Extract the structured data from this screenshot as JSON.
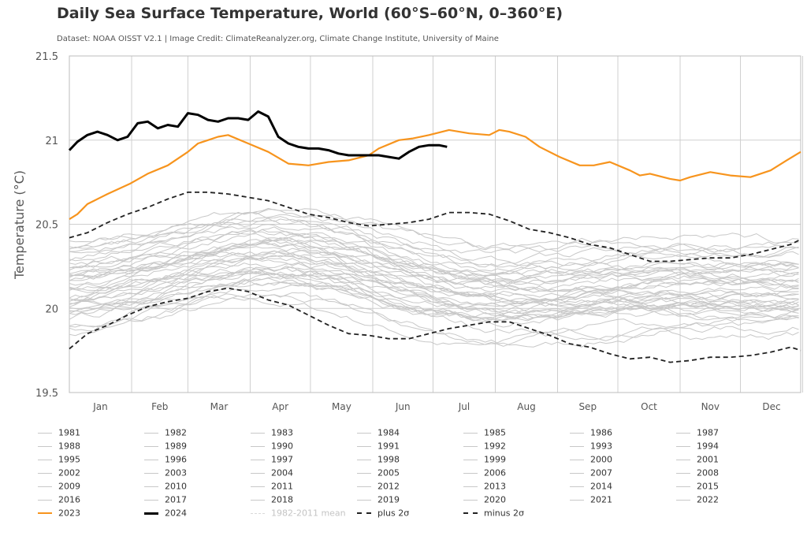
{
  "title": "Daily Sea Surface Temperature, World (60°S–60°N, 0–360°E)",
  "subtitle": "Dataset: NOAA OISST V2.1 | Image Credit: ClimateReanalyzer.org, Climate Change Institute, University of Maine",
  "colors": {
    "grey": "#c8c8c8",
    "y2023": "#f7941d",
    "y2024": "#000000",
    "band": "#222222",
    "mean": "#d9d9d9"
  },
  "chart_data": {
    "type": "line",
    "title": "Daily Sea Surface Temperature, World (60°S–60°N, 0–360°E)",
    "ylabel": "Temperature (°C)",
    "xlabel": "",
    "ylim": [
      19.5,
      21.5
    ],
    "yticks": [
      "19.5",
      "20",
      "20.5",
      "21",
      "21.5"
    ],
    "months": [
      "Jan",
      "Feb",
      "Mar",
      "Apr",
      "May",
      "Jun",
      "Jul",
      "Aug",
      "Sep",
      "Oct",
      "Nov",
      "Dec"
    ],
    "grid": true,
    "legend_position": "bottom",
    "series": [
      {
        "name": "2023",
        "color": "#f7941d",
        "x": [
          1,
          5,
          10,
          20,
          31,
          40,
          50,
          60,
          65,
          70,
          75,
          80,
          90,
          100,
          110,
          120,
          130,
          140,
          150,
          155,
          165,
          172,
          180,
          190,
          200,
          210,
          215,
          220,
          228,
          235,
          245,
          255,
          262,
          270,
          280,
          285,
          290,
          300,
          305,
          310,
          320,
          325,
          330,
          340,
          350,
          358,
          365
        ],
        "y": [
          20.53,
          20.56,
          20.62,
          20.68,
          20.74,
          20.8,
          20.85,
          20.93,
          20.98,
          21.0,
          21.02,
          21.03,
          20.98,
          20.93,
          20.86,
          20.85,
          20.87,
          20.88,
          20.91,
          20.95,
          21.0,
          21.01,
          21.03,
          21.06,
          21.04,
          21.03,
          21.06,
          21.05,
          21.02,
          20.96,
          20.9,
          20.85,
          20.85,
          20.87,
          20.82,
          20.79,
          20.8,
          20.77,
          20.76,
          20.78,
          20.81,
          20.8,
          20.79,
          20.78,
          20.82,
          20.88,
          20.93
        ]
      },
      {
        "name": "2024",
        "color": "#000000",
        "x": [
          1,
          5,
          10,
          15,
          20,
          25,
          30,
          35,
          40,
          45,
          50,
          55,
          60,
          65,
          70,
          75,
          80,
          85,
          90,
          95,
          100,
          105,
          110,
          115,
          120,
          125,
          130,
          135,
          140,
          145,
          150,
          155,
          160,
          165,
          170,
          175,
          180,
          185,
          189
        ],
        "y": [
          20.94,
          20.99,
          21.03,
          21.05,
          21.03,
          21.0,
          21.02,
          21.1,
          21.11,
          21.07,
          21.09,
          21.08,
          21.16,
          21.15,
          21.12,
          21.11,
          21.13,
          21.13,
          21.12,
          21.17,
          21.14,
          21.02,
          20.98,
          20.96,
          20.95,
          20.95,
          20.94,
          20.92,
          20.91,
          20.91,
          20.91,
          20.91,
          20.9,
          20.89,
          20.93,
          20.96,
          20.97,
          20.97,
          20.96
        ]
      },
      {
        "name": "plus 2σ",
        "color": "#222222",
        "dash": true,
        "x": [
          1,
          10,
          20,
          30,
          40,
          50,
          60,
          70,
          80,
          90,
          100,
          110,
          120,
          130,
          140,
          150,
          160,
          170,
          180,
          190,
          200,
          210,
          220,
          230,
          240,
          250,
          260,
          270,
          280,
          290,
          300,
          310,
          320,
          330,
          340,
          350,
          360,
          365
        ],
        "y": [
          20.42,
          20.45,
          20.51,
          20.56,
          20.6,
          20.65,
          20.69,
          20.69,
          20.68,
          20.66,
          20.64,
          20.6,
          20.56,
          20.54,
          20.51,
          20.49,
          20.5,
          20.51,
          20.53,
          20.57,
          20.57,
          20.56,
          20.52,
          20.47,
          20.45,
          20.42,
          20.38,
          20.36,
          20.32,
          20.28,
          20.28,
          20.29,
          20.3,
          20.3,
          20.32,
          20.35,
          20.38,
          20.41
        ]
      },
      {
        "name": "minus 2σ",
        "color": "#222222",
        "dash": true,
        "x": [
          1,
          10,
          20,
          30,
          40,
          50,
          60,
          70,
          80,
          90,
          100,
          110,
          120,
          130,
          140,
          150,
          160,
          170,
          180,
          190,
          200,
          210,
          220,
          230,
          240,
          250,
          260,
          270,
          280,
          290,
          300,
          310,
          320,
          330,
          340,
          350,
          360,
          365
        ],
        "y": [
          19.76,
          19.85,
          19.9,
          19.96,
          20.01,
          20.04,
          20.06,
          20.1,
          20.12,
          20.1,
          20.05,
          20.02,
          19.96,
          19.9,
          19.85,
          19.84,
          19.82,
          19.82,
          19.85,
          19.88,
          19.9,
          19.92,
          19.92,
          19.88,
          19.84,
          19.79,
          19.77,
          19.73,
          19.7,
          19.71,
          19.68,
          19.69,
          19.71,
          19.71,
          19.72,
          19.74,
          19.77,
          19.75
        ]
      }
    ]
  },
  "legend": {
    "years": [
      "1981",
      "1982",
      "1983",
      "1984",
      "1985",
      "1986",
      "1987",
      "1988",
      "1989",
      "1990",
      "1991",
      "1992",
      "1993",
      "1994",
      "1995",
      "1996",
      "1997",
      "1998",
      "1999",
      "2000",
      "2001",
      "2002",
      "2003",
      "2004",
      "2005",
      "2006",
      "2007",
      "2008",
      "2009",
      "2010",
      "2011",
      "2012",
      "2013",
      "2014",
      "2015",
      "2016",
      "2017",
      "2018",
      "2019",
      "2020",
      "2021",
      "2022"
    ],
    "y2023": "2023",
    "y2024": "2024",
    "mean": "1982-2011 mean",
    "plus": "plus 2σ",
    "minus": "minus 2σ"
  }
}
